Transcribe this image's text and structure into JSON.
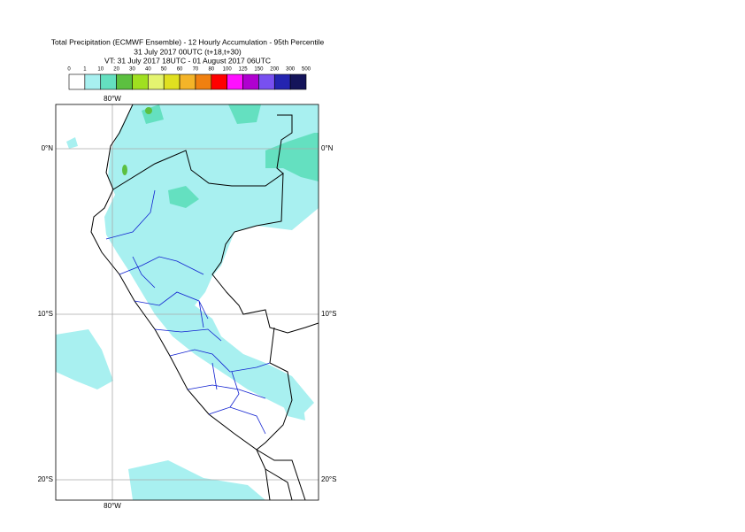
{
  "header": {
    "title": "Total Precipitation (ECMWF Ensemble) - 12 Hourly Accumulation - 95th Percentile",
    "base_time": "31 July 2017 00UTC (t+18,t+30)",
    "valid_time": "VT: 31 July 2017 18UTC - 01 August 2017 06UTC"
  },
  "legend": {
    "levels": [
      "0",
      "1",
      "10",
      "20",
      "30",
      "40",
      "50",
      "60",
      "70",
      "80",
      "100",
      "125",
      "150",
      "200",
      "300",
      "500"
    ],
    "colors": [
      "#ffffff",
      "#a8f0f0",
      "#64e0c0",
      "#5cc040",
      "#a0e020",
      "#e4f470",
      "#e0e020",
      "#f4b428",
      "#f08010",
      "#ff0000",
      "#ff10ff",
      "#b000d0",
      "#7850f0",
      "#2424b0",
      "#14145a"
    ]
  },
  "map": {
    "lon_top": "80°W",
    "lon_bottom": "80°W",
    "lat_left": [
      "0°N",
      "10°S",
      "20°S"
    ],
    "lat_right": [
      "0°N",
      "10°S",
      "20°S"
    ]
  }
}
